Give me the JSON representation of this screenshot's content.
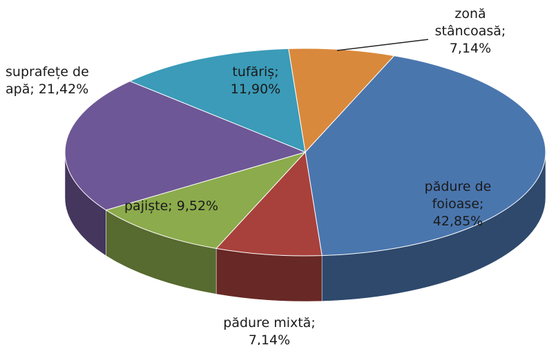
{
  "chart_data": {
    "type": "pie",
    "categories": [
      "zonă stâncoasă;",
      "pădure de foioase;",
      "pădure mixtă;",
      "pajiște;",
      "suprafețe de apă;",
      "tufăriș;"
    ],
    "values": [
      7.14,
      42.85,
      7.14,
      9.52,
      21.42,
      11.9
    ],
    "value_labels": [
      "7,14%",
      "42,85%",
      "7,14%",
      "9,52%",
      "21,42%",
      "11,90%"
    ],
    "colors": [
      "#d9893c",
      "#4a76ae",
      "#a8413c",
      "#8cab4c",
      "#6e5796",
      "#3b9bb8"
    ]
  }
}
